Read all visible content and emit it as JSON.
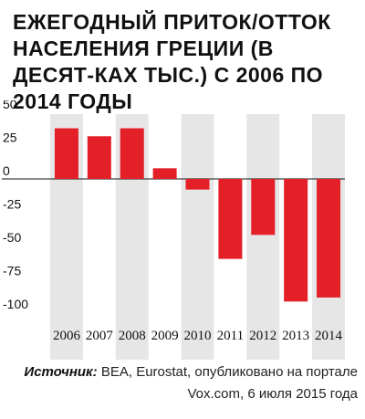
{
  "title": "Ежегодный приток/отток населения Греции (в десят-ках тыс.) с 2006 по 2014 годы",
  "chart_data": {
    "type": "bar",
    "title": "Ежегодный приток/отток населения Греции (в десят-ках тыс.) с 2006 по 2014 годы",
    "categories": [
      "2006",
      "2007",
      "2008",
      "2009",
      "2010",
      "2011",
      "2012",
      "2013",
      "2014"
    ],
    "values": [
      38,
      32,
      38,
      8,
      -8,
      -60,
      -42,
      -92,
      -89
    ],
    "ylim": [
      -100,
      50
    ],
    "yticks": [
      "50",
      "25",
      "0",
      "-25",
      "-50",
      "-75",
      "-100"
    ],
    "ytick_values": [
      50,
      25,
      0,
      -25,
      -50,
      -75,
      -100
    ],
    "xlabel": "",
    "ylabel": "",
    "grid": false,
    "bar_color": "#e32027",
    "column_shade_color": "#e6e6e6"
  },
  "source": {
    "label": "Источник:",
    "text": " BEA, Eurostat, опубликовано на портале Vox.com, 6 июля 2015 года"
  }
}
